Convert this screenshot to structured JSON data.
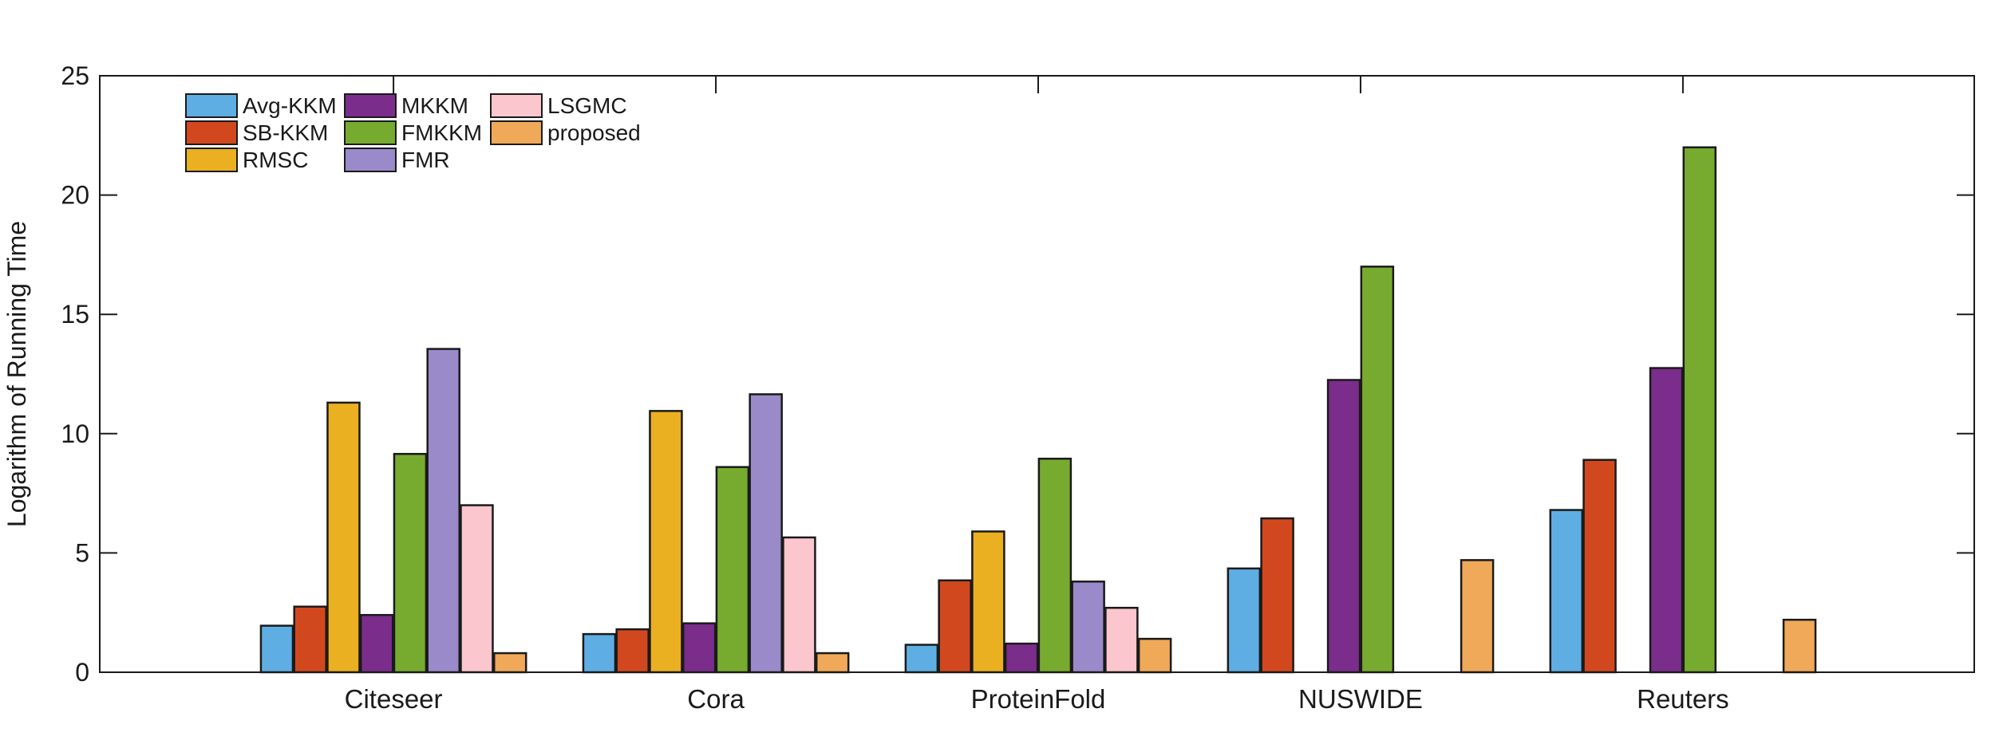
{
  "chart_data": {
    "type": "bar",
    "title": "",
    "xlabel": "",
    "ylabel": "Logarithm of Running Time",
    "ylim": [
      0,
      25
    ],
    "yticks": [
      0,
      5,
      10,
      15,
      20,
      25
    ],
    "grid": false,
    "legend_position": "upper-left",
    "legend_columns": [
      3,
      3,
      2
    ],
    "background_color": "#ffffff",
    "axis_color": "#1a1a1a",
    "bar_edge_color": "#1a1a1a",
    "categories": [
      "Citeseer",
      "Cora",
      "ProteinFold",
      "NUSWIDE",
      "Reuters"
    ],
    "series": [
      {
        "name": "Avg-KKM",
        "color": "#5FAEE3",
        "values": [
          1.95,
          1.6,
          1.15,
          4.35,
          6.8
        ]
      },
      {
        "name": "SB-KKM",
        "color": "#D2481E",
        "values": [
          2.75,
          1.8,
          3.85,
          6.45,
          8.9
        ]
      },
      {
        "name": "RMSC",
        "color": "#EBB021",
        "values": [
          11.3,
          10.95,
          5.9,
          0,
          0
        ]
      },
      {
        "name": "MKKM",
        "color": "#7B2D8B",
        "values": [
          2.4,
          2.05,
          1.2,
          12.25,
          12.75
        ]
      },
      {
        "name": "FMKKM",
        "color": "#77AB2F",
        "values": [
          9.15,
          8.6,
          8.95,
          17,
          22
        ]
      },
      {
        "name": "FMR",
        "color": "#9A8AC9",
        "values": [
          13.55,
          11.65,
          3.8,
          0,
          0
        ]
      },
      {
        "name": "LSGMC",
        "color": "#FBC6CE",
        "values": [
          7.0,
          5.65,
          2.7,
          0,
          0
        ]
      },
      {
        "name": "proposed",
        "color": "#EFA959",
        "values": [
          0.8,
          0.8,
          1.4,
          4.7,
          2.2
        ]
      }
    ]
  }
}
